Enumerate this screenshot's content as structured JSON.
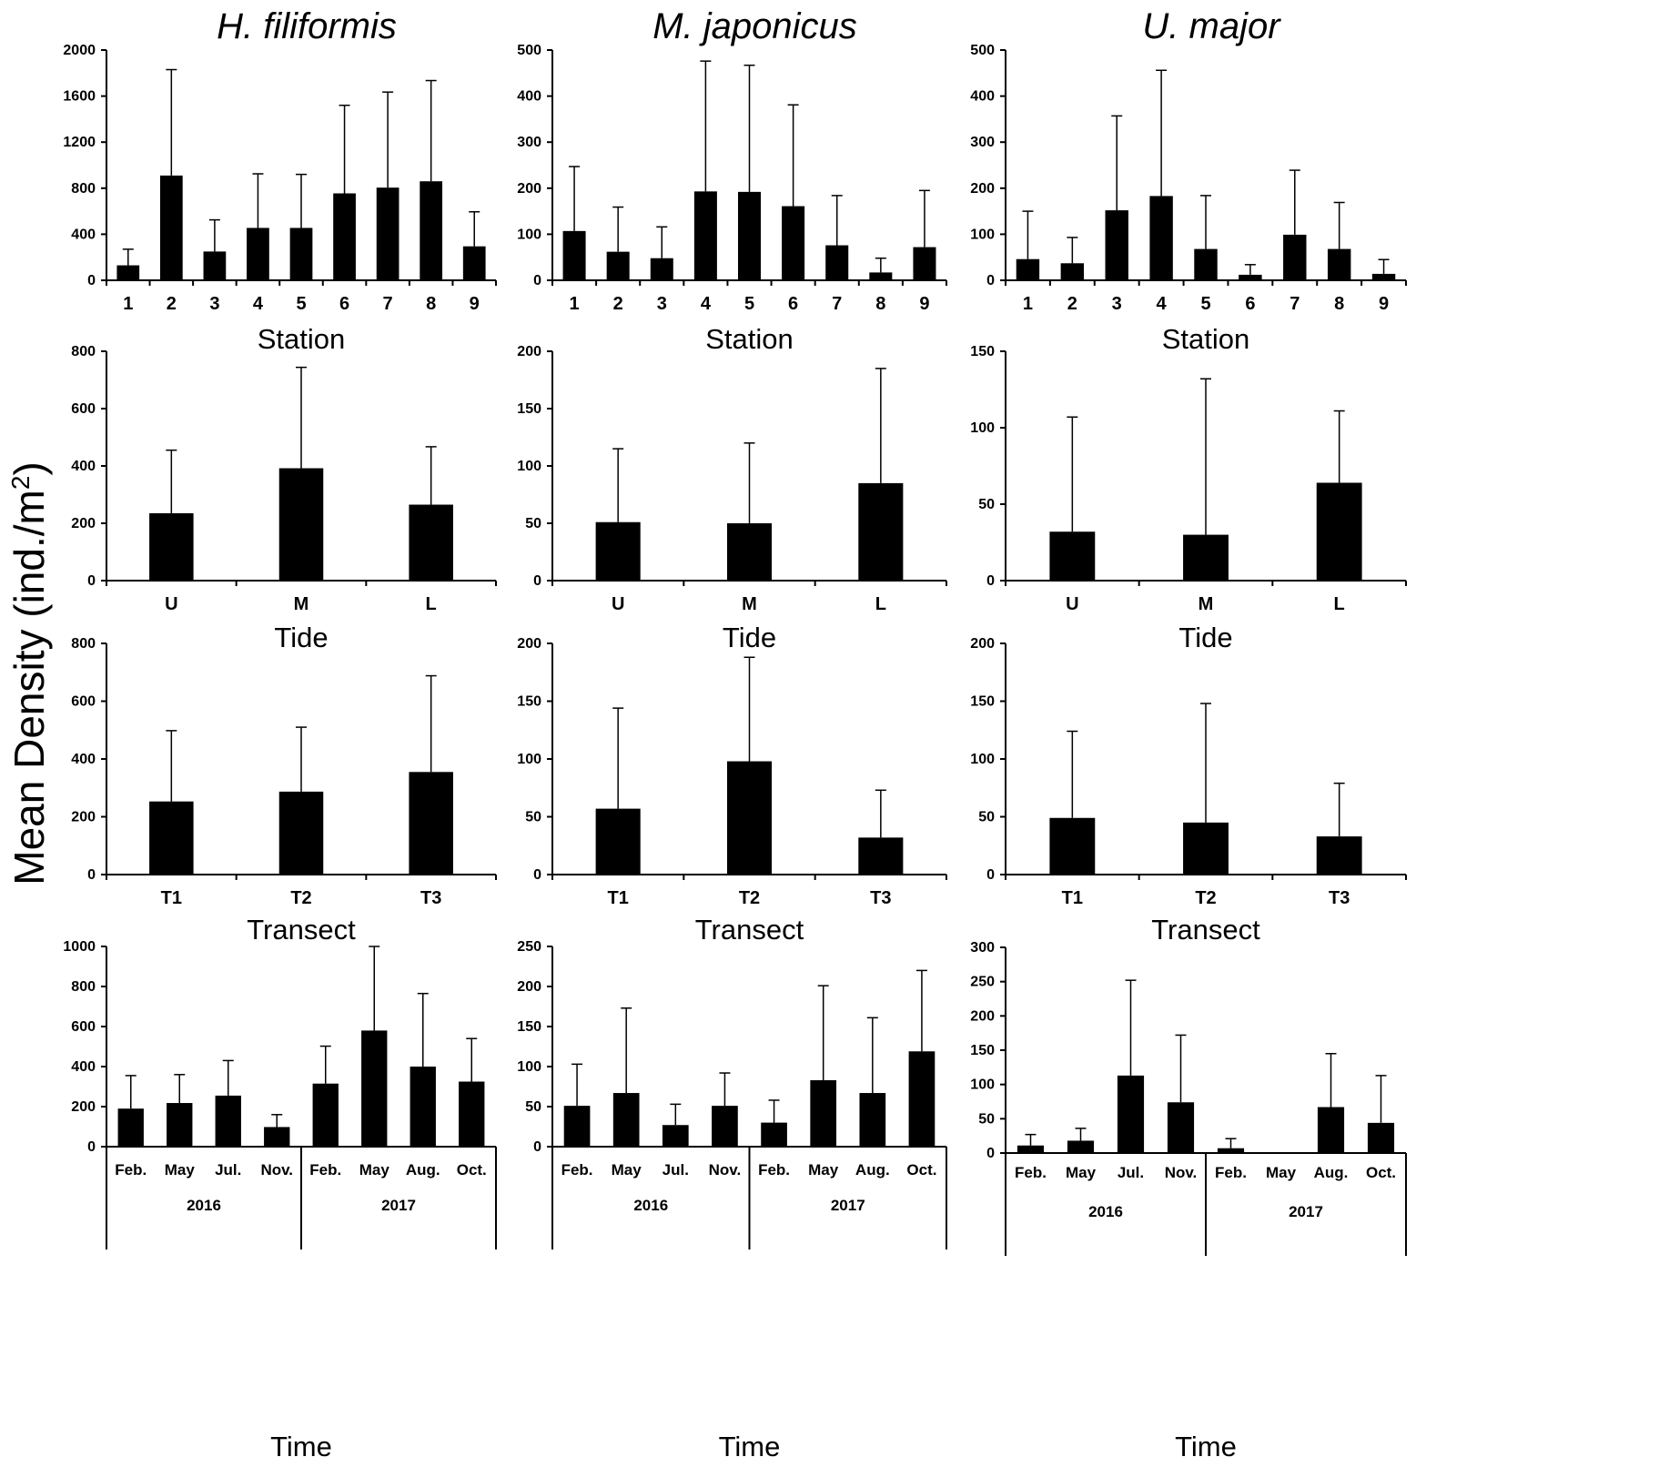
{
  "figure": {
    "ylabel": "Mean Density (ind./m",
    "ylabel_sup": "2",
    "ylabel_end": ")",
    "colors": {
      "bar": "#000000",
      "axis": "#000000",
      "background": "#ffffff"
    }
  },
  "chart_data": [
    {
      "id": "hf-station",
      "type": "bar",
      "title": "H. filiformis",
      "xlabel": "Station",
      "categories": [
        "1",
        "2",
        "3",
        "4",
        "5",
        "6",
        "7",
        "8",
        "9"
      ],
      "values": [
        130,
        910,
        250,
        455,
        455,
        755,
        805,
        860,
        295
      ],
      "errors": [
        140,
        920,
        275,
        470,
        465,
        765,
        830,
        875,
        300
      ],
      "ylim": [
        0,
        2000
      ],
      "yticks": [
        0,
        400,
        800,
        1200,
        1600,
        2000
      ]
    },
    {
      "id": "mj-station",
      "type": "bar",
      "title": "M. japonicus",
      "xlabel": "Station",
      "categories": [
        "1",
        "2",
        "3",
        "4",
        "5",
        "6",
        "7",
        "8",
        "9"
      ],
      "values": [
        107,
        62,
        48,
        193,
        192,
        161,
        76,
        17,
        72
      ],
      "errors": [
        140,
        97,
        68,
        283,
        275,
        220,
        108,
        31,
        123
      ],
      "ylim": [
        0,
        500
      ],
      "yticks": [
        0,
        100,
        200,
        300,
        400,
        500
      ]
    },
    {
      "id": "um-station",
      "type": "bar",
      "title": "U. major",
      "xlabel": "Station",
      "categories": [
        "1",
        "2",
        "3",
        "4",
        "5",
        "6",
        "7",
        "8",
        "9"
      ],
      "values": [
        46,
        37,
        152,
        183,
        68,
        12,
        99,
        68,
        14
      ],
      "errors": [
        104,
        56,
        205,
        273,
        116,
        22,
        140,
        101,
        31
      ],
      "ylim": [
        0,
        500
      ],
      "yticks": [
        0,
        100,
        200,
        300,
        400,
        500
      ]
    },
    {
      "id": "hf-tide",
      "type": "bar",
      "xlabel": "Tide",
      "categories": [
        "U",
        "M",
        "L"
      ],
      "values": [
        235,
        392,
        265
      ],
      "errors": [
        220,
        352,
        202
      ],
      "ylim": [
        0,
        800
      ],
      "yticks": [
        0,
        200,
        400,
        600,
        800
      ]
    },
    {
      "id": "mj-tide",
      "type": "bar",
      "xlabel": "Tide",
      "categories": [
        "U",
        "M",
        "L"
      ],
      "values": [
        51,
        50,
        85
      ],
      "errors": [
        64,
        70,
        100
      ],
      "ylim": [
        0,
        200
      ],
      "yticks": [
        0,
        50,
        100,
        150,
        200
      ]
    },
    {
      "id": "um-tide",
      "type": "bar",
      "xlabel": "Tide",
      "categories": [
        "U",
        "M",
        "L"
      ],
      "values": [
        32,
        30,
        64
      ],
      "errors": [
        75,
        102,
        47
      ],
      "ylim": [
        0,
        150
      ],
      "yticks": [
        0,
        50,
        100,
        150
      ]
    },
    {
      "id": "hf-transect",
      "type": "bar",
      "xlabel": "Transect",
      "categories": [
        "T1",
        "T2",
        "T3"
      ],
      "values": [
        253,
        287,
        355
      ],
      "errors": [
        245,
        223,
        333
      ],
      "ylim": [
        0,
        800
      ],
      "yticks": [
        0,
        200,
        400,
        600,
        800
      ]
    },
    {
      "id": "mj-transect",
      "type": "bar",
      "xlabel": "Transect",
      "categories": [
        "T1",
        "T2",
        "T3"
      ],
      "values": [
        57,
        98,
        32
      ],
      "errors": [
        87,
        90,
        41
      ],
      "ylim": [
        0,
        200
      ],
      "yticks": [
        0,
        50,
        100,
        150,
        200
      ]
    },
    {
      "id": "um-transect",
      "type": "bar",
      "xlabel": "Transect",
      "categories": [
        "T1",
        "T2",
        "T3"
      ],
      "values": [
        49,
        45,
        33
      ],
      "errors": [
        75,
        103,
        46
      ],
      "ylim": [
        0,
        200
      ],
      "yticks": [
        0,
        50,
        100,
        150,
        200
      ]
    },
    {
      "id": "hf-time",
      "type": "bar",
      "xlabel": "Time",
      "categories": [
        "Feb.",
        "May",
        "Jul.",
        "Nov.",
        "Feb.",
        "May",
        "Aug.",
        "Oct."
      ],
      "groups": [
        "2016",
        "2017"
      ],
      "values": [
        190,
        218,
        255,
        98,
        315,
        580,
        400,
        325
      ],
      "errors": [
        165,
        142,
        175,
        62,
        187,
        420,
        365,
        215
      ],
      "ylim": [
        0,
        1000
      ],
      "yticks": [
        0,
        200,
        400,
        600,
        800,
        1000
      ]
    },
    {
      "id": "mj-time",
      "type": "bar",
      "xlabel": "Time",
      "categories": [
        "Feb.",
        "May",
        "Jul.",
        "Nov.",
        "Feb.",
        "May",
        "Aug.",
        "Oct."
      ],
      "groups": [
        "2016",
        "2017"
      ],
      "values": [
        51,
        67,
        27,
        51,
        30,
        83,
        67,
        119
      ],
      "errors": [
        52,
        106,
        26,
        41,
        28,
        118,
        94,
        101
      ],
      "ylim": [
        0,
        250
      ],
      "yticks": [
        0,
        50,
        100,
        150,
        200,
        250
      ]
    },
    {
      "id": "um-time",
      "type": "bar",
      "xlabel": "Time",
      "categories": [
        "Feb.",
        "May",
        "Jul.",
        "Nov.",
        "Feb.",
        "May",
        "Aug.",
        "Oct."
      ],
      "groups": [
        "2016",
        "2017"
      ],
      "values": [
        11,
        18,
        113,
        74,
        7,
        0,
        67,
        44
      ],
      "errors": [
        16,
        18,
        139,
        98,
        14,
        0,
        78,
        69
      ],
      "ylim": [
        0,
        300
      ],
      "yticks": [
        0,
        50,
        100,
        150,
        200,
        250,
        300
      ]
    }
  ]
}
